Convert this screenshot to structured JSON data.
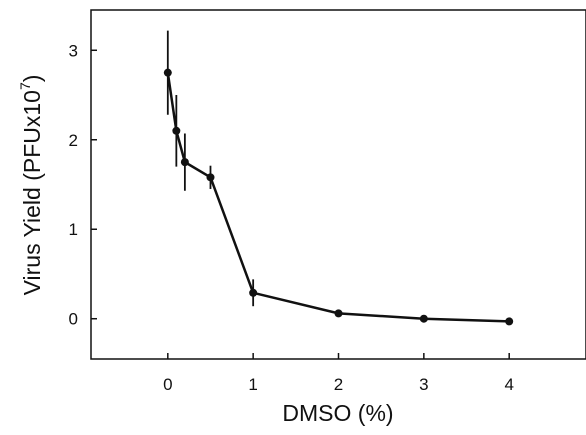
{
  "chart_data": {
    "type": "line",
    "title": "",
    "xlabel": "DMSO (%)",
    "ylabel": {
      "main": "Virus Yield (PFUx10",
      "exponent": "7",
      "close": ")"
    },
    "xlim": [
      -0.9,
      4.9
    ],
    "ylim": [
      -0.45,
      3.45
    ],
    "x_ticks": [
      0,
      1,
      2,
      3,
      4
    ],
    "y_ticks": [
      0,
      1,
      2,
      3
    ],
    "grid": false,
    "legend": "none",
    "series": [
      {
        "x": [
          0,
          0.1,
          0.2,
          0.5,
          1,
          2,
          3,
          4
        ],
        "y": [
          2.75,
          2.1,
          1.75,
          1.58,
          0.29,
          0.06,
          0.0,
          -0.03
        ],
        "error": [
          0.47,
          0.4,
          0.32,
          0.13,
          0.15,
          0,
          0,
          0
        ]
      }
    ],
    "colors": {
      "line": "#111111",
      "axis": "#111111"
    }
  }
}
